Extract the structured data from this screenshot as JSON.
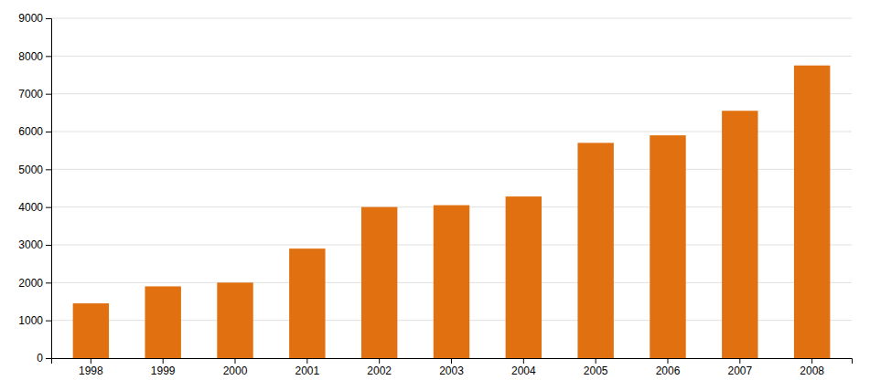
{
  "chart_data": {
    "type": "bar",
    "categories": [
      "1998",
      "1999",
      "2000",
      "2001",
      "2002",
      "2003",
      "2004",
      "2005",
      "2006",
      "2007",
      "2008"
    ],
    "values": [
      1450,
      1900,
      2000,
      2900,
      4000,
      4050,
      4280,
      5700,
      5900,
      6550,
      7750
    ],
    "color": "#E07010",
    "ylim": [
      0,
      9000
    ],
    "yticks": [
      0,
      1000,
      2000,
      3000,
      4000,
      5000,
      6000,
      7000,
      8000,
      9000
    ],
    "grid": true
  }
}
